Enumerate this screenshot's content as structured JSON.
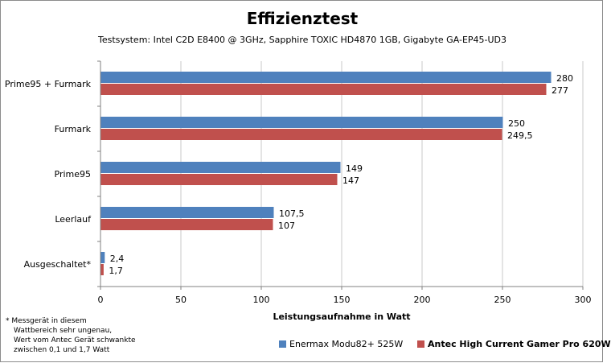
{
  "chart_data": {
    "type": "bar",
    "orientation": "horizontal",
    "title": "Effizienztest",
    "subtitle": "Testsystem:  Intel C2D E8400 @ 3GHz, Sapphire TOXIC HD4870 1GB, Gigabyte GA-EP45-UD3",
    "xlabel": "Leistungsaufnahme  in Watt",
    "ylabel": "",
    "xlim": [
      0,
      300
    ],
    "xticks": [
      0,
      50,
      100,
      150,
      200,
      250,
      300
    ],
    "grid": true,
    "legend_position": "bottom-right",
    "categories": [
      "Prime95 + Furmark",
      "Furmark",
      "Prime95",
      "Leerlauf",
      "Ausgeschaltet*"
    ],
    "series": [
      {
        "name": "Enermax Modu82+ 525W",
        "color": "#4f81bd",
        "values": [
          280,
          250,
          149,
          107.5,
          2.4
        ],
        "labels": [
          "280",
          "250",
          "149",
          "107,5",
          "2,4"
        ]
      },
      {
        "name": "Antec High Current Gamer Pro 620W",
        "color": "#c0504d",
        "values": [
          277,
          249.5,
          147,
          107,
          1.7
        ],
        "labels": [
          "277",
          "249,5",
          "147",
          "107",
          "1,7"
        ]
      }
    ],
    "footnote": [
      "* Messgerät in diesem",
      "Wattbereich sehr ungenau,",
      "Wert vom Antec Gerät schwankte",
      "zwischen 0,1 und 1,7 Watt"
    ]
  }
}
